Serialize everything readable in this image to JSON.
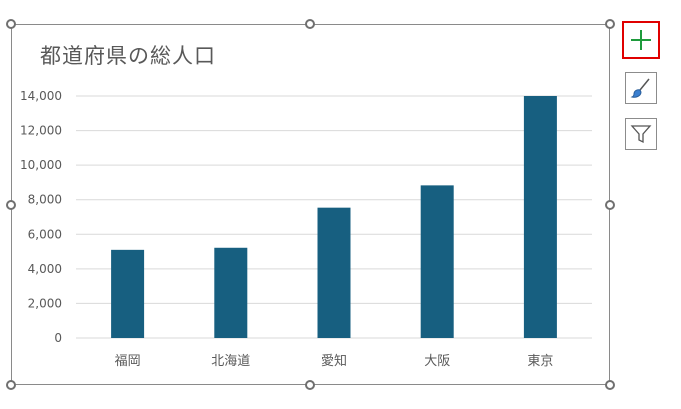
{
  "chart_data": {
    "type": "bar",
    "title": "都道府県の総人口",
    "categories": [
      "福岡",
      "北海道",
      "愛知",
      "大阪",
      "東京"
    ],
    "values": [
      5100,
      5220,
      7540,
      8830,
      14000
    ],
    "ylim": [
      0,
      14000
    ],
    "yticks": [
      0,
      2000,
      4000,
      6000,
      8000,
      10000,
      12000,
      14000
    ],
    "ytick_labels": [
      "0",
      "2,000",
      "4,000",
      "6,000",
      "8,000",
      "10,000",
      "12,000",
      "14,000"
    ],
    "grid": true,
    "bar_color": "#175f80",
    "grid_color": "#d9d9d9"
  },
  "side_buttons": {
    "add": {
      "icon": "plus-icon",
      "color": "#1e9b3c"
    },
    "style": {
      "icon": "brush-icon"
    },
    "filter": {
      "icon": "funnel-icon"
    }
  }
}
